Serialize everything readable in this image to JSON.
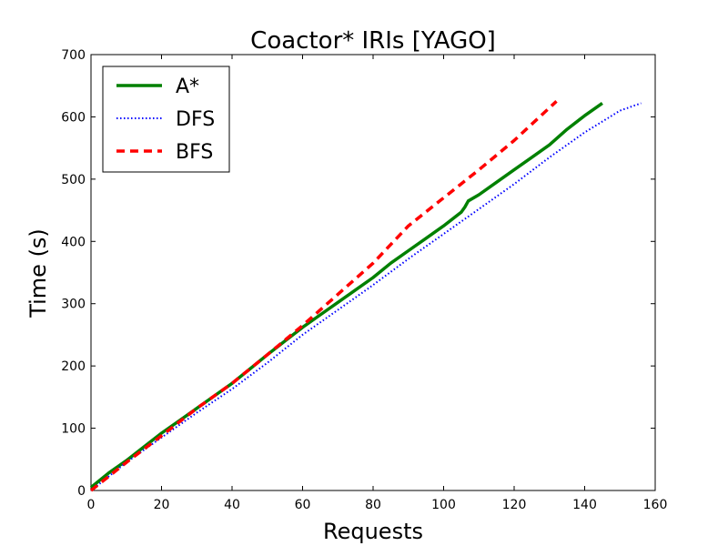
{
  "chart_data": {
    "type": "line",
    "title": "Coactor* IRIs [YAGO]",
    "xlabel": "Requests",
    "ylabel": "Time (s)",
    "xlim": [
      0,
      160
    ],
    "ylim": [
      0,
      700
    ],
    "xticks": [
      0,
      20,
      40,
      60,
      80,
      100,
      120,
      140,
      160
    ],
    "yticks": [
      0,
      100,
      200,
      300,
      400,
      500,
      600,
      700
    ],
    "grid": false,
    "legend_position": "top-left",
    "series": [
      {
        "name": "A*",
        "color": "#008000",
        "style": "solid",
        "x": [
          0,
          5,
          10,
          15,
          20,
          25,
          30,
          35,
          40,
          45,
          50,
          55,
          60,
          65,
          70,
          75,
          80,
          85,
          90,
          95,
          100,
          105,
          106,
          107,
          110,
          115,
          120,
          125,
          130,
          135,
          140,
          145
        ],
        "y": [
          5,
          28,
          48,
          70,
          92,
          112,
          132,
          152,
          172,
          195,
          218,
          240,
          262,
          282,
          302,
          322,
          342,
          365,
          385,
          405,
          425,
          447,
          455,
          465,
          475,
          495,
          515,
          535,
          555,
          580,
          602,
          622
        ]
      },
      {
        "name": "DFS",
        "color": "#0000ff",
        "style": "dotted",
        "x": [
          0,
          10,
          20,
          30,
          40,
          50,
          60,
          70,
          80,
          90,
          100,
          110,
          120,
          130,
          140,
          150,
          156
        ],
        "y": [
          0,
          45,
          85,
          125,
          163,
          205,
          250,
          290,
          330,
          372,
          412,
          452,
          492,
          535,
          575,
          610,
          622
        ]
      },
      {
        "name": "BFS",
        "color": "#ff0000",
        "style": "dashed",
        "x": [
          0,
          10,
          20,
          30,
          40,
          50,
          60,
          70,
          80,
          90,
          100,
          110,
          120,
          132
        ],
        "y": [
          0,
          45,
          88,
          132,
          172,
          218,
          265,
          315,
          365,
          425,
          470,
          515,
          562,
          625
        ]
      }
    ]
  }
}
